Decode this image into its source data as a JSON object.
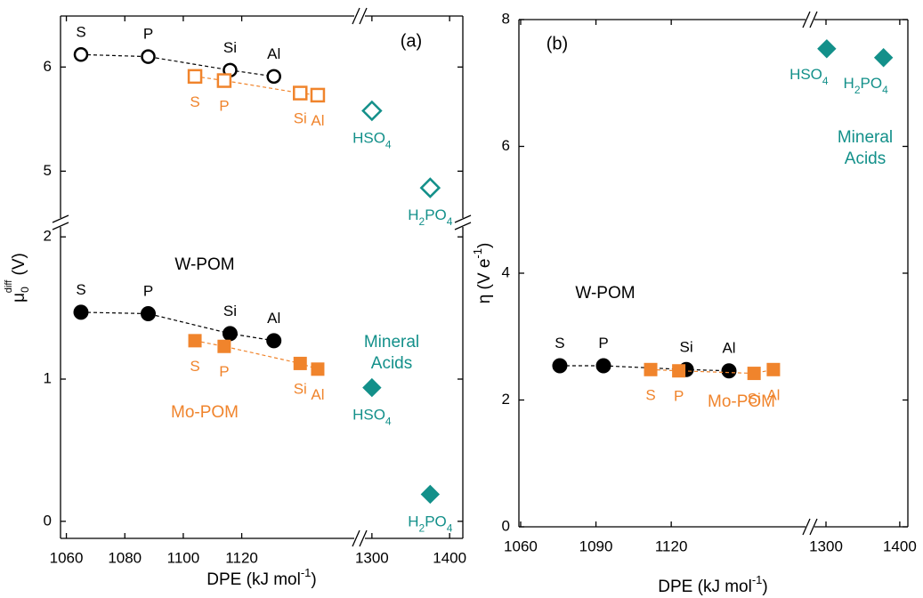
{
  "chart_data": [
    {
      "type": "scatter",
      "title": "(a)",
      "xlabel": [
        "DPE  (kJ mol",
        "-1",
        ")"
      ],
      "ylabel": [
        "μ",
        "0",
        "diff",
        " (V)"
      ],
      "x_segments": [
        {
          "xlim": [
            1058,
            1158.5
          ],
          "xticks": [
            1060,
            1080,
            1100,
            1120
          ]
        },
        {
          "xlim": [
            1291,
            1417
          ],
          "xticks": [
            1300,
            1400
          ]
        }
      ],
      "y_segments": [
        {
          "ylim": [
            -0.12,
            2.07
          ],
          "yticks": [
            0,
            1,
            2
          ]
        },
        {
          "ylim": [
            4.55,
            6.49
          ],
          "yticks": [
            5,
            6
          ]
        }
      ],
      "series": [
        {
          "color": "#000000",
          "marker": "circle",
          "filled": false,
          "fit_line": true,
          "y_segment": 1,
          "x": [
            1065,
            1088,
            1116,
            1131
          ],
          "values": [
            6.12,
            6.1,
            5.97,
            5.91
          ],
          "point_labels": [
            [
              "S"
            ],
            [
              "P"
            ],
            [
              "Si"
            ],
            [
              "Al"
            ]
          ]
        },
        {
          "color": "#f0842c",
          "marker": "square",
          "filled": false,
          "fit_line": true,
          "y_segment": 1,
          "x": [
            1104,
            1114,
            1140,
            1146
          ],
          "values": [
            5.91,
            5.87,
            5.75,
            5.73
          ],
          "point_labels": [
            [
              "S"
            ],
            [
              "P"
            ],
            [
              "Si"
            ],
            [
              "Al"
            ]
          ]
        },
        {
          "color": "#13908a",
          "marker": "diamond",
          "filled": false,
          "fit_line": false,
          "y_segment": 1,
          "x": [
            1300,
            1375
          ],
          "values": [
            5.58,
            4.84
          ],
          "point_labels": [
            [
              "HSO",
              "4"
            ],
            [
              "H",
              "2",
              "PO",
              "4"
            ]
          ]
        },
        {
          "name": "W-POM",
          "color": "#000000",
          "marker": "circle",
          "filled": true,
          "fit_line": true,
          "y_segment": 0,
          "x": [
            1065,
            1088,
            1116,
            1131
          ],
          "values": [
            1.47,
            1.46,
            1.32,
            1.27
          ],
          "point_labels": [
            [
              "S"
            ],
            [
              "P"
            ],
            [
              "Si"
            ],
            [
              "Al"
            ]
          ]
        },
        {
          "name": "Mo-POM",
          "color": "#f0842c",
          "marker": "square",
          "filled": true,
          "fit_line": true,
          "y_segment": 0,
          "x": [
            1104,
            1114,
            1140,
            1146
          ],
          "values": [
            1.27,
            1.23,
            1.11,
            1.07
          ],
          "point_labels": [
            [
              "S"
            ],
            [
              "P"
            ],
            [
              "Si"
            ],
            [
              "Al"
            ]
          ]
        },
        {
          "name": "Mineral Acids",
          "color": "#13908a",
          "marker": "diamond",
          "filled": true,
          "fit_line": false,
          "y_segment": 0,
          "x": [
            1300,
            1375
          ],
          "values": [
            0.94,
            0.19
          ],
          "point_labels": [
            [
              "HSO",
              "4"
            ],
            [
              "H",
              "2",
              "PO",
              "4"
            ]
          ]
        }
      ]
    },
    {
      "type": "scatter",
      "title": "(b)",
      "xlabel": [
        "DPE  (kJ mol",
        "-1",
        ")"
      ],
      "ylabel": [
        "η (V e",
        "-1",
        ")"
      ],
      "x_segments": [
        {
          "xlim": [
            1059.3,
            1173.5
          ],
          "xticks": [
            1060,
            1090,
            1120
          ]
        },
        {
          "xlim": [
            1284.3,
            1411
          ],
          "xticks": [
            1300,
            1400
          ]
        }
      ],
      "y_segments": [
        {
          "ylim": [
            0,
            8
          ],
          "yticks": [
            0,
            2,
            4,
            6,
            8
          ]
        }
      ],
      "series": [
        {
          "name": "W-POM",
          "color": "#000000",
          "marker": "circle",
          "filled": true,
          "fit_line": true,
          "y_segment": 0,
          "x": [
            1075.6,
            1093,
            1126,
            1143
          ],
          "values": [
            2.54,
            2.54,
            2.48,
            2.46
          ],
          "point_labels": [
            [
              "S"
            ],
            [
              "P"
            ],
            [
              "Si"
            ],
            [
              "Al"
            ]
          ]
        },
        {
          "name": "Mo-POM",
          "color": "#f0842c",
          "marker": "square",
          "filled": true,
          "fit_line": true,
          "y_segment": 0,
          "x": [
            1111.8,
            1123,
            1153,
            1160.7
          ],
          "values": [
            2.48,
            2.46,
            2.42,
            2.48
          ],
          "point_labels": [
            [
              "S"
            ],
            [
              "P"
            ],
            [
              "Si"
            ],
            [
              "Al"
            ]
          ]
        },
        {
          "name": "Mineral Acids",
          "color": "#13908a",
          "marker": "diamond",
          "filled": true,
          "fit_line": false,
          "y_segment": 0,
          "x": [
            1301,
            1378
          ],
          "values": [
            7.54,
            7.4
          ],
          "point_labels": [
            [
              "HSO",
              "4"
            ],
            [
              "H",
              "2",
              "PO",
              "4"
            ]
          ]
        }
      ]
    }
  ]
}
